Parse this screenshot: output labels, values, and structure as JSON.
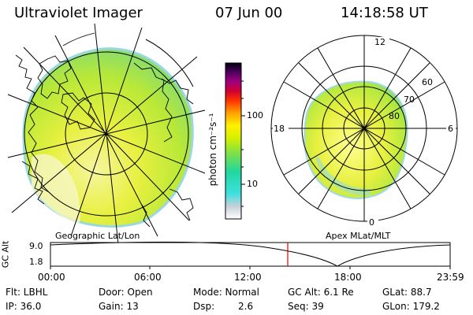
{
  "header": {
    "title": "Ultraviolet Imager",
    "date": "07 Jun 00",
    "time": "14:18:58 UT"
  },
  "colorbar": {
    "label": "photon cm⁻²s⁻¹",
    "ticks": [
      "100",
      "10"
    ]
  },
  "maps": {
    "left_label": "Geographic Lat/Lon",
    "right_label": "Apex MLat/MLT",
    "right_hours": [
      "12",
      "18",
      "6",
      "0"
    ],
    "right_lats": [
      "60",
      "70",
      "80"
    ]
  },
  "timeline": {
    "axis_label": "GC Alt",
    "y_ticks": [
      "9.0",
      "1.8"
    ],
    "x_ticks": [
      "00:00",
      "06:00",
      "12:00",
      "18:00",
      "23:59"
    ]
  },
  "info": {
    "row1": [
      "Flt: LBHL",
      "Door: Open",
      "Mode: Normal",
      "GC Alt: 6.1 Re",
      "GLat: 88.7"
    ],
    "row2": [
      "IP: 36.0",
      "Gain: 13",
      "Dsp:",
      "2.6",
      "Seq: 39",
      "GLon: 179.2"
    ]
  }
}
